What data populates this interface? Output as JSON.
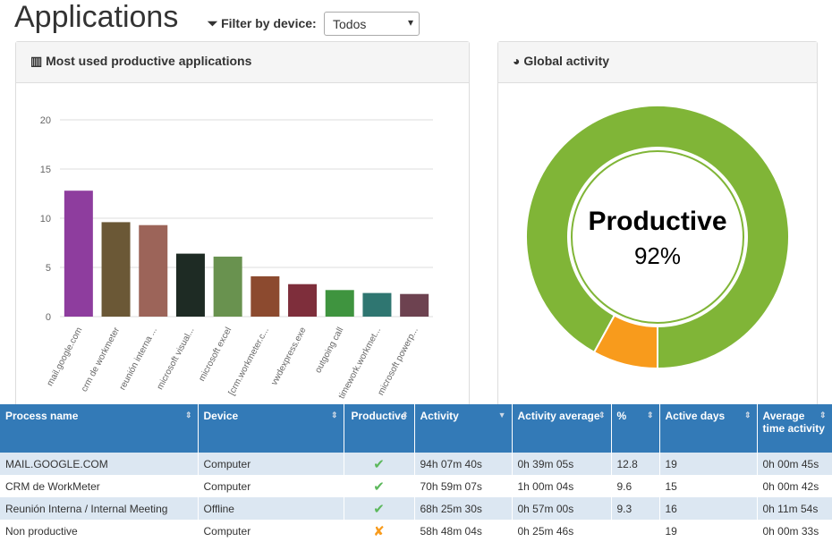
{
  "header": {
    "title": "Applications",
    "filter_label": "Filter by device:",
    "filter_value": "Todos"
  },
  "panels": {
    "left_title": "Most used productive applications",
    "right_title": "Global activity"
  },
  "chart_data": [
    {
      "type": "bar",
      "categories": [
        "mail.google.com",
        "crm de workmeter",
        "reunión interna ...",
        "microsoft visual...",
        "microsoft excel",
        "[crm.workmeter.c...",
        "vwdexpress.exe",
        "outgoing call",
        "timework.workmet...",
        "microsoft powerp..."
      ],
      "values": [
        12.8,
        9.6,
        9.3,
        6.4,
        6.1,
        4.1,
        3.3,
        2.7,
        2.4,
        2.3
      ],
      "colors": [
        "#8e3d9e",
        "#6b5836",
        "#9c6459",
        "#1e2b24",
        "#69924f",
        "#8c4a2f",
        "#7e2e3b",
        "#3f943f",
        "#2f7671",
        "#6d4250"
      ],
      "ylim": [
        0,
        20
      ],
      "yticks": [
        0,
        5,
        10,
        15,
        20
      ],
      "grid": true
    },
    {
      "type": "pie",
      "categories": [
        "Productive",
        null
      ],
      "values": [
        92,
        8
      ],
      "value_labels": [
        "92%",
        null
      ],
      "colors": [
        "#80b537",
        "#f89b1c"
      ]
    }
  ],
  "table": {
    "columns": [
      "Process name",
      "Device",
      "Productive",
      "Activity",
      "Activity average",
      "%",
      "Active days",
      "Average time activity"
    ],
    "rows": [
      [
        "MAIL.GOOGLE.COM",
        "Computer",
        "✔",
        "94h 07m 40s",
        "0h 39m 05s",
        "12.8",
        "19",
        "0h 00m 45s"
      ],
      [
        "CRM de WorkMeter",
        "Computer",
        "✔",
        "70h 59m 07s",
        "1h 00m 04s",
        "9.6",
        "15",
        "0h 00m 42s"
      ],
      [
        "Reunión Interna / Internal Meeting",
        "Offline",
        "✔",
        "68h 25m 30s",
        "0h 57m 00s",
        "9.3",
        "16",
        "0h 11m 54s"
      ],
      [
        "Non productive",
        "Computer",
        "✘",
        "58h 48m 04s",
        "0h 25m 46s",
        null,
        "19",
        "0h 00m 33s"
      ]
    ]
  }
}
